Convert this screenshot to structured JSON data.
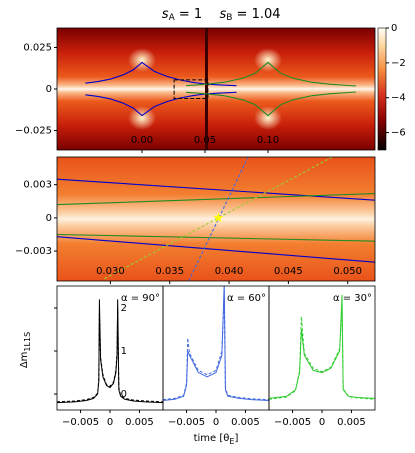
{
  "chart_data": [
    {
      "type": "caustic-map",
      "title": [
        [
          "s",
          "A",
          " = 1"
        ],
        [
          "s",
          "B",
          " = 1.04"
        ]
      ],
      "xlim": [
        -0.0675,
        0.185
      ],
      "ylim": [
        -0.0367,
        0.0367
      ],
      "xticks": [
        {
          "value": 0,
          "label": "0.00"
        },
        0.05,
        {
          "value": 0.1,
          "label": "0.10"
        }
      ],
      "yticks": [
        0.025,
        0,
        {
          "value": -0.025,
          "label": "−0.025"
        }
      ],
      "colorbar": {
        "lim": [
          -7,
          0
        ],
        "ticks": [
          0,
          {
            "value": -2,
            "label": "−2"
          },
          {
            "value": -4,
            "label": "−4"
          },
          {
            "value": -6,
            "label": "−6"
          }
        ]
      },
      "series": [
        {
          "color": "#0000cd",
          "x": [
            -0.045,
            -0.035,
            -0.025,
            -0.015,
            -0.007,
            0,
            0.01,
            0.02,
            0.03,
            0.04,
            0.05,
            0.06,
            0.075
          ],
          "values": [
            0.0035,
            0.0045,
            0.006,
            0.0085,
            0.0115,
            0.016,
            0.0105,
            0.0075,
            0.0055,
            0.004,
            0.003,
            0.0025,
            0.002
          ]
        },
        {
          "color": "#0000cd",
          "x": [
            -0.045,
            -0.035,
            -0.025,
            -0.015,
            -0.007,
            0,
            0.01,
            0.02,
            0.03,
            0.04,
            0.05,
            0.06,
            0.075
          ],
          "values": [
            -0.0035,
            -0.0045,
            -0.006,
            -0.0085,
            -0.0115,
            -0.016,
            -0.0105,
            -0.0075,
            -0.0055,
            -0.004,
            -0.003,
            -0.0025,
            -0.002
          ]
        },
        {
          "color": "#228b22",
          "x": [
            0.035,
            0.05,
            0.065,
            0.08,
            0.09,
            0.1,
            0.11,
            0.12,
            0.135,
            0.15,
            0.17
          ],
          "values": [
            0.002,
            0.0028,
            0.004,
            0.0065,
            0.0095,
            0.016,
            0.0095,
            0.0065,
            0.004,
            0.0028,
            0.0018
          ]
        },
        {
          "color": "#228b22",
          "x": [
            0.035,
            0.05,
            0.065,
            0.08,
            0.09,
            0.1,
            0.11,
            0.12,
            0.135,
            0.15,
            0.17
          ],
          "values": [
            -0.002,
            -0.0028,
            -0.004,
            -0.0065,
            -0.0095,
            -0.016,
            -0.0095,
            -0.0065,
            -0.004,
            -0.0028,
            -0.0018
          ]
        }
      ]
    },
    {
      "type": "caustic-zoom",
      "xlim": [
        0.0255,
        0.0523
      ],
      "ylim": [
        -0.0057,
        0.0055
      ],
      "xticks": [
        {
          "value": 0.03,
          "label": "0.030"
        },
        0.035,
        {
          "value": 0.04,
          "label": "0.040"
        },
        0.045,
        {
          "value": 0.05,
          "label": "0.050"
        }
      ],
      "yticks": [
        0.003,
        0,
        {
          "value": -0.003,
          "label": "−0.003"
        }
      ],
      "series": [
        {
          "color": "#0000cd",
          "x": [
            0.0255,
            0.0523
          ],
          "values": [
            0.0035,
            0.0016
          ]
        },
        {
          "color": "#228b22",
          "x": [
            0.0255,
            0.0523
          ],
          "values": [
            0.0012,
            0.0022
          ]
        },
        {
          "color": "#228b22",
          "x": [
            0.0255,
            0.0523
          ],
          "values": [
            -0.0015,
            -0.0021
          ]
        },
        {
          "color": "#0000cd",
          "x": [
            0.0255,
            0.0523
          ],
          "values": [
            -0.0017,
            -0.004
          ]
        },
        {
          "color": "#4169e1",
          "dash": true,
          "x": [
            0.0366,
            0.0416
          ],
          "values": [
            -0.0057,
            0.0055
          ]
        },
        {
          "color": "#9acd32",
          "dash": true,
          "x": [
            0.0295,
            0.0487
          ],
          "values": [
            -0.0055,
            0.0055
          ]
        }
      ],
      "star": {
        "x": 0.0391,
        "y": 0,
        "color": "#ffff00"
      }
    },
    {
      "type": "line",
      "annotation": "α = 90°",
      "ylabel": [
        "Δm",
        "1L1S"
      ],
      "xlim": [
        -0.009,
        0.009
      ],
      "ylim": [
        -0.37,
        2.51
      ],
      "xticks": [
        {
          "value": -0.005,
          "label": "−0.005"
        },
        0,
        0.005
      ],
      "yticks": [
        0,
        1,
        2
      ],
      "series": [
        {
          "color": "#000000",
          "x": [
            -0.009,
            -0.006,
            -0.004,
            -0.0028,
            -0.0021,
            -0.0019,
            -0.0018,
            -0.0016,
            -0.0012,
            -0.0006,
            0,
            0.0006,
            0.001,
            0.0012,
            0.0013,
            0.0015,
            0.0018,
            0.0025,
            0.004,
            0.006,
            0.009
          ],
          "values": [
            -0.2,
            -0.18,
            -0.15,
            -0.1,
            0,
            0.3,
            2.2,
            0.8,
            0.4,
            0.2,
            0.15,
            0.25,
            0.5,
            0.9,
            2.2,
            0.1,
            -0.05,
            -0.12,
            -0.16,
            -0.18,
            -0.2
          ]
        },
        {
          "color": "#000000",
          "dash": true,
          "x": [
            -0.009,
            -0.006,
            -0.004,
            -0.0028,
            -0.0021,
            -0.0019,
            -0.0018,
            -0.0016,
            -0.0012,
            -0.0006,
            0,
            0.0006,
            0.001,
            0.0012,
            0.0013,
            0.0015,
            0.0018,
            0.0025,
            0.004,
            0.006,
            0.009
          ],
          "values": [
            -0.18,
            -0.16,
            -0.13,
            -0.08,
            0.02,
            0.35,
            1.9,
            0.85,
            0.45,
            0.22,
            0.18,
            0.28,
            0.55,
            1.0,
            2.0,
            0.15,
            -0.03,
            -0.1,
            -0.14,
            -0.16,
            -0.18
          ]
        }
      ]
    },
    {
      "type": "line",
      "annotation": "α = 60°",
      "xlabel": [
        "time [θ",
        "E",
        "]"
      ],
      "xlim": [
        -0.009,
        0.009
      ],
      "ylim": [
        -0.37,
        2.51
      ],
      "xticks": [
        {
          "value": -0.005,
          "label": "−0.005"
        },
        0,
        0.005
      ],
      "series": [
        {
          "color": "#4169e1",
          "x": [
            -0.009,
            -0.007,
            -0.0055,
            -0.005,
            -0.0048,
            -0.0045,
            -0.003,
            -0.0015,
            0,
            0.001,
            0.0014,
            0.0016,
            0.002,
            0.004,
            0.006,
            0.009
          ],
          "values": [
            -0.15,
            -0.12,
            -0.05,
            0.2,
            1.0,
            0.9,
            0.5,
            0.4,
            0.5,
            0.9,
            2.6,
            0.1,
            -0.05,
            -0.1,
            -0.13,
            -0.15
          ]
        },
        {
          "color": "#4169e1",
          "dash": true,
          "x": [
            -0.009,
            -0.007,
            -0.0055,
            -0.005,
            -0.0048,
            -0.0045,
            -0.003,
            -0.0015,
            0,
            0.001,
            0.0014,
            0.0016,
            0.002,
            0.004,
            0.006,
            0.009
          ],
          "values": [
            -0.13,
            -0.1,
            -0.03,
            0.25,
            1.3,
            0.95,
            0.55,
            0.45,
            0.55,
            1.0,
            2.3,
            0.15,
            -0.03,
            -0.08,
            -0.11,
            -0.13
          ]
        }
      ]
    },
    {
      "type": "line",
      "annotation": "α = 30°",
      "xlim": [
        -0.009,
        0.009
      ],
      "ylim": [
        -0.37,
        2.51
      ],
      "xticks": [
        {
          "value": -0.005,
          "label": "−0.005"
        },
        0,
        0.005
      ],
      "series": [
        {
          "color": "#32cd32",
          "x": [
            -0.009,
            -0.006,
            -0.0045,
            -0.0038,
            -0.0035,
            -0.003,
            -0.0015,
            0,
            0.0015,
            0.003,
            0.0034,
            0.0036,
            0.0045,
            0.006,
            0.009
          ],
          "values": [
            -0.1,
            -0.05,
            0.1,
            0.5,
            1.5,
            0.9,
            0.55,
            0.5,
            0.6,
            1.0,
            2.3,
            0.1,
            -0.05,
            -0.08,
            -0.1
          ]
        },
        {
          "color": "#32cd32",
          "dash": true,
          "x": [
            -0.009,
            -0.006,
            -0.0045,
            -0.0038,
            -0.0035,
            -0.003,
            -0.0015,
            0,
            0.0015,
            0.003,
            0.0034,
            0.0036,
            0.0045,
            0.006,
            0.009
          ],
          "values": [
            -0.12,
            -0.07,
            0.08,
            0.55,
            1.8,
            0.95,
            0.6,
            0.52,
            0.62,
            1.05,
            2.0,
            0.12,
            -0.06,
            -0.09,
            -0.12
          ]
        }
      ]
    }
  ]
}
